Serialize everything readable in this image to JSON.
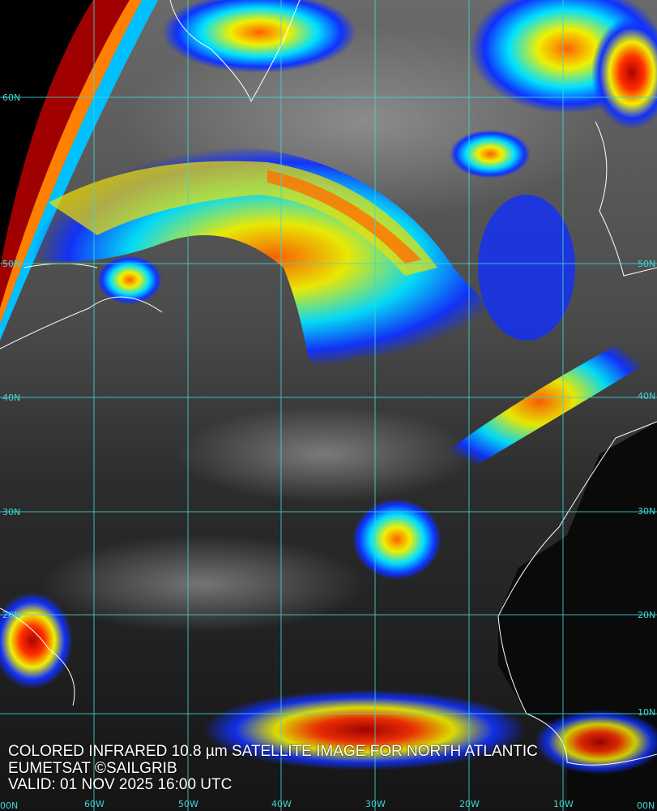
{
  "caption": {
    "line1": "COLORED INFRARED 10.8 µm SATELLITE IMAGE FOR NORTH ATLANTIC",
    "line2": "EUMETSAT ©SAILGRIB",
    "line3": "VALID:  01 NOV 2025 16:00 UTC"
  },
  "grid": {
    "color": "#3fd6d6",
    "lat_labels_left": [
      "60N",
      "50N",
      "40N",
      "30N",
      "20N"
    ],
    "lat_labels_right": [
      "50N",
      "40N",
      "30N",
      "20N",
      "10N",
      "00N"
    ],
    "lon_labels": [
      "00N",
      "60W",
      "50W",
      "40W",
      "30W",
      "20W",
      "10W",
      "00N"
    ]
  },
  "colors": {
    "coastline": "#ffffff",
    "cold_cloud_blue": "#1030ff",
    "cyan": "#00e0ff",
    "yellow": "#f0f000",
    "orange": "#ff8000",
    "red": "#b00000"
  }
}
